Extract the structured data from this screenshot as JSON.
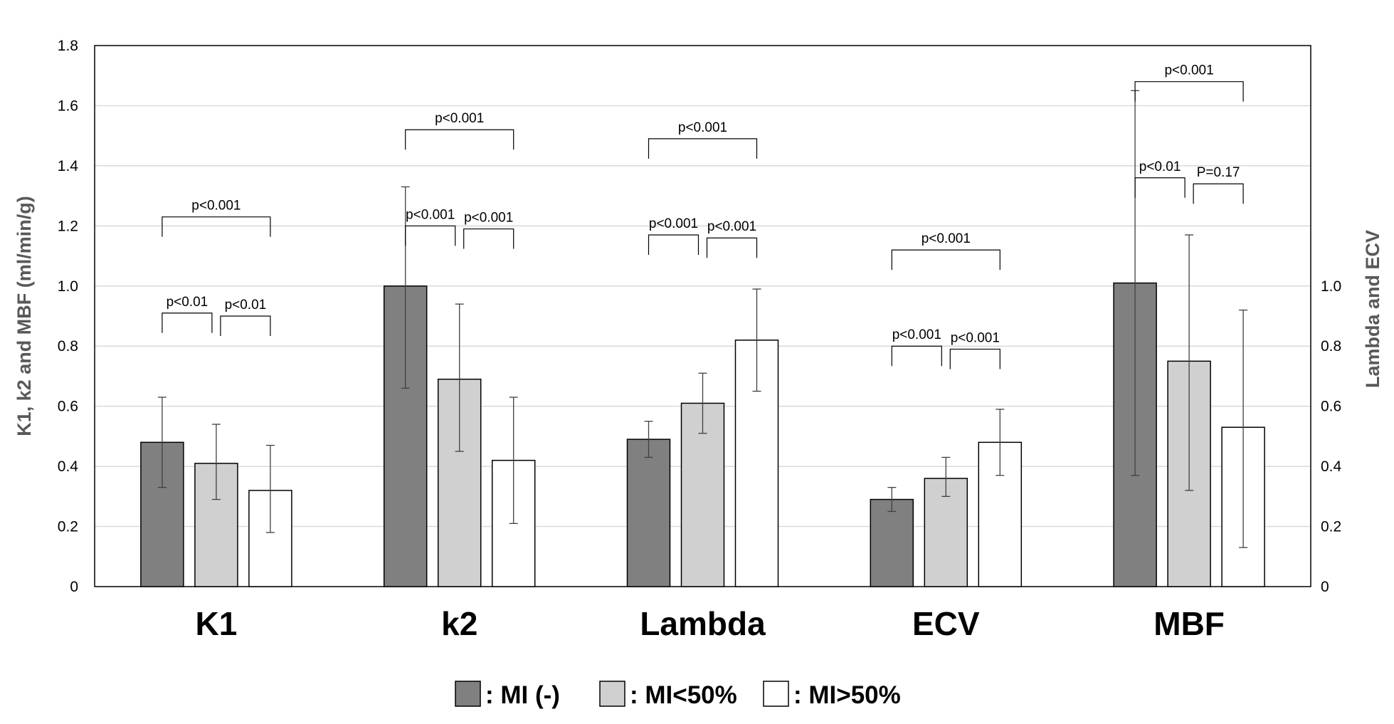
{
  "chart_data": {
    "type": "bar",
    "categories": [
      "K1",
      "k2",
      "Lambda",
      "ECV",
      "MBF"
    ],
    "ylabel_left": "K1, k2 and MBF  (ml/min/g)",
    "ylabel_right": "Lambda and ECV",
    "ylim_left": [
      0,
      1.8
    ],
    "yticks_left": [
      "0",
      "0.2",
      "0.4",
      "0.6",
      "0.8",
      "1.0",
      "1.2",
      "1.4",
      "1.6",
      "1.8"
    ],
    "ylim_right": [
      0,
      1.8
    ],
    "yticks_right": [
      "0",
      "0.2",
      "0.4",
      "0.6",
      "0.8",
      "1.0"
    ],
    "grid": true,
    "legend_position": "bottom-center",
    "series": [
      {
        "name": ": MI (-)",
        "color": "#808080",
        "values": [
          0.48,
          1.0,
          0.49,
          0.29,
          1.01
        ],
        "err_low": [
          0.33,
          0.66,
          0.43,
          0.25,
          0.37
        ],
        "err_high": [
          0.63,
          1.33,
          0.55,
          0.33,
          1.65
        ]
      },
      {
        "name": ": MI<50%",
        "color": "#d0d0d0",
        "values": [
          0.41,
          0.69,
          0.61,
          0.36,
          0.75
        ],
        "err_low": [
          0.29,
          0.45,
          0.51,
          0.3,
          0.32
        ],
        "err_high": [
          0.54,
          0.94,
          0.71,
          0.43,
          1.17
        ]
      },
      {
        "name": ": MI>50%",
        "color": "#ffffff",
        "values": [
          0.32,
          0.42,
          0.82,
          0.48,
          0.53
        ],
        "err_low": [
          0.18,
          0.21,
          0.65,
          0.37,
          0.13
        ],
        "err_high": [
          0.47,
          0.63,
          0.99,
          0.59,
          0.92
        ]
      }
    ],
    "annotations": [
      {
        "category": 0,
        "from": 0,
        "to": 2,
        "label": "p<0.001",
        "y": 1.23
      },
      {
        "category": 0,
        "from": 0,
        "to": 1,
        "label": "p<0.01",
        "y": 0.91
      },
      {
        "category": 0,
        "from": 1,
        "to": 2,
        "label": "p<0.01",
        "y": 0.9
      },
      {
        "category": 1,
        "from": 0,
        "to": 2,
        "label": "p<0.001",
        "y": 1.52
      },
      {
        "category": 1,
        "from": 0,
        "to": 1,
        "label": "p<0.001",
        "y": 1.2
      },
      {
        "category": 1,
        "from": 1,
        "to": 2,
        "label": "p<0.001",
        "y": 1.19
      },
      {
        "category": 2,
        "from": 0,
        "to": 2,
        "label": "p<0.001",
        "y": 1.49
      },
      {
        "category": 2,
        "from": 0,
        "to": 1,
        "label": "p<0.001",
        "y": 1.17
      },
      {
        "category": 2,
        "from": 1,
        "to": 2,
        "label": "p<0.001",
        "y": 1.16
      },
      {
        "category": 3,
        "from": 0,
        "to": 2,
        "label": "p<0.001",
        "y": 1.12
      },
      {
        "category": 3,
        "from": 0,
        "to": 1,
        "label": "p<0.001",
        "y": 0.8
      },
      {
        "category": 3,
        "from": 1,
        "to": 2,
        "label": "p<0.001",
        "y": 0.79
      },
      {
        "category": 4,
        "from": 0,
        "to": 2,
        "label": "p<0.001",
        "y": 1.68
      },
      {
        "category": 4,
        "from": 0,
        "to": 1,
        "label": "p<0.01",
        "y": 1.36
      },
      {
        "category": 4,
        "from": 1,
        "to": 2,
        "label": "P=0.17",
        "y": 1.34
      }
    ]
  }
}
